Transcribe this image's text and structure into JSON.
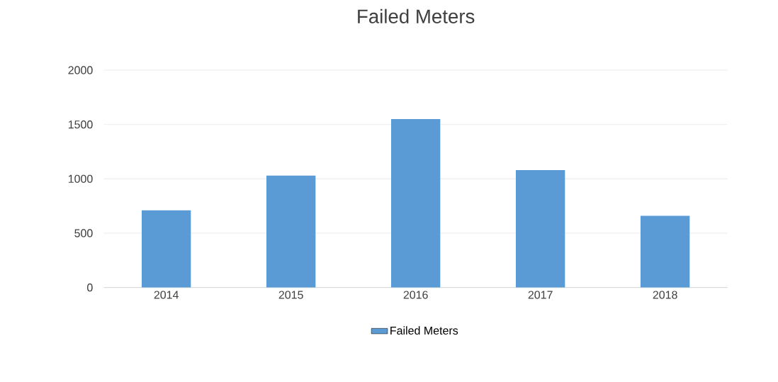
{
  "chart_data": {
    "type": "bar",
    "title": "Failed Meters",
    "categories": [
      "2014",
      "2015",
      "2016",
      "2017",
      "2018"
    ],
    "series": [
      {
        "name": "Failed Meters",
        "color": "#5b9bd5",
        "values": [
          710,
          1030,
          1550,
          1080,
          660
        ]
      }
    ],
    "ylim": [
      0,
      2000
    ],
    "yticks": [
      0,
      500,
      1000,
      1500,
      2000
    ],
    "grid": "y",
    "legend": "bottom"
  }
}
